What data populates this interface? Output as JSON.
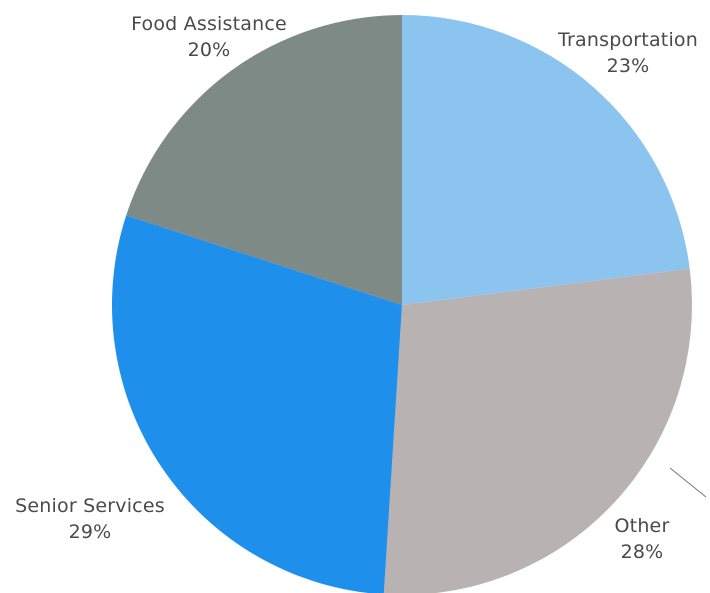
{
  "chart_data": {
    "type": "pie",
    "title": "",
    "slices": [
      {
        "label": "Transportation",
        "value": 23,
        "value_label": "23%",
        "color": "#8cc4f0"
      },
      {
        "label": "Other",
        "value": 28,
        "value_label": "28%",
        "color": "#b9b2b2"
      },
      {
        "label": "Senior Services",
        "value": 29,
        "value_label": "29%",
        "color": "#1f8fec"
      },
      {
        "label": "Food Assistance",
        "value": 20,
        "value_label": "20%",
        "color": "#7d8a86"
      }
    ],
    "start_angle": "12 o'clock",
    "direction": "clockwise",
    "legend": "none"
  }
}
